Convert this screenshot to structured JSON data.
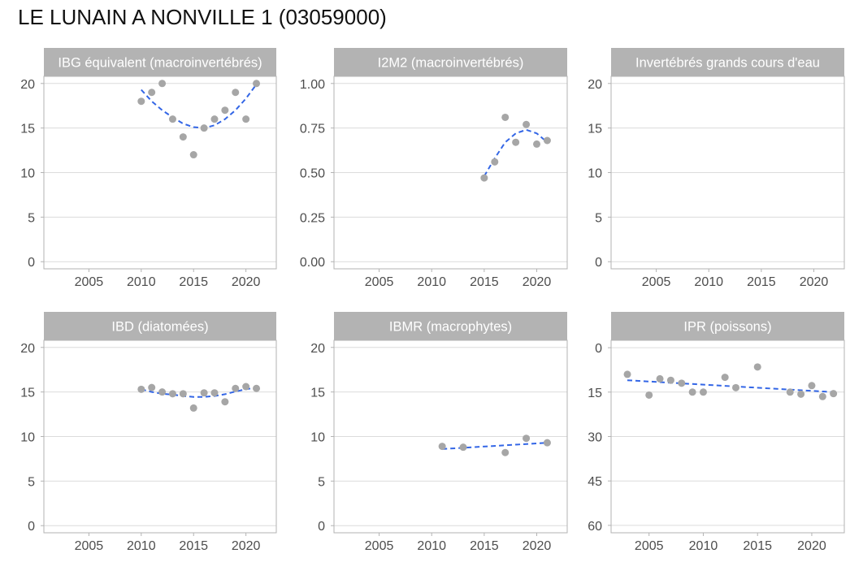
{
  "page": {
    "title": "LE LUNAIN A NONVILLE 1 (03059000)"
  },
  "style": {
    "strip_fill": "#b3b3b3",
    "strip_text": "#ffffff",
    "panel_border": "#b3b3b3",
    "grid": "#dcdcdc",
    "tick_text": "#4d4d4d",
    "point": "#a6a6a6",
    "trend": "#3366e6"
  },
  "chart_data": [
    {
      "type": "scatter",
      "title": "IBG équivalent (macroinvertébrés)",
      "xlim": [
        2000.7,
        2022.9
      ],
      "ylim": [
        -0.8,
        20.8
      ],
      "x_ticks": [
        2005,
        2010,
        2015,
        2020
      ],
      "y_ticks": [
        0,
        5,
        10,
        15,
        20
      ],
      "y_tick_labels": [
        "0",
        "5",
        "10",
        "15",
        "20"
      ],
      "y_reversed": false,
      "grid": true,
      "points": [
        [
          2010,
          18
        ],
        [
          2011,
          19
        ],
        [
          2012,
          20
        ],
        [
          2013,
          16
        ],
        [
          2014,
          14
        ],
        [
          2015,
          12
        ],
        [
          2016,
          15
        ],
        [
          2017,
          16
        ],
        [
          2018,
          17
        ],
        [
          2019,
          19
        ],
        [
          2020,
          16
        ],
        [
          2021,
          20
        ]
      ],
      "trend": [
        [
          2010,
          19.3
        ],
        [
          2011,
          18.0
        ],
        [
          2012,
          17.0
        ],
        [
          2013,
          16.2
        ],
        [
          2014,
          15.5
        ],
        [
          2015,
          15.1
        ],
        [
          2016,
          15.0
        ],
        [
          2017,
          15.3
        ],
        [
          2018,
          16.0
        ],
        [
          2019,
          17.0
        ],
        [
          2020,
          18.3
        ],
        [
          2021,
          19.9
        ]
      ]
    },
    {
      "type": "scatter",
      "title": "I2M2 (macroinvertébrés)",
      "xlim": [
        2000.7,
        2022.9
      ],
      "ylim": [
        -0.04,
        1.04
      ],
      "x_ticks": [
        2005,
        2010,
        2015,
        2020
      ],
      "y_ticks": [
        0,
        0.25,
        0.5,
        0.75,
        1.0
      ],
      "y_tick_labels": [
        "0.00",
        "0.25",
        "0.50",
        "0.75",
        "1.00"
      ],
      "y_reversed": false,
      "grid": true,
      "points": [
        [
          2015,
          0.47
        ],
        [
          2016,
          0.56
        ],
        [
          2017,
          0.81
        ],
        [
          2018,
          0.67
        ],
        [
          2019,
          0.77
        ],
        [
          2020,
          0.66
        ],
        [
          2021,
          0.68
        ]
      ],
      "trend": [
        [
          2015,
          0.48
        ],
        [
          2016,
          0.58
        ],
        [
          2017,
          0.67
        ],
        [
          2018,
          0.72
        ],
        [
          2019,
          0.74
        ],
        [
          2020,
          0.72
        ],
        [
          2021,
          0.67
        ]
      ]
    },
    {
      "type": "scatter",
      "title": "Invertébrés grands cours d'eau",
      "xlim": [
        2000.7,
        2022.9
      ],
      "ylim": [
        -0.8,
        20.8
      ],
      "x_ticks": [
        2005,
        2010,
        2015,
        2020
      ],
      "y_ticks": [
        0,
        5,
        10,
        15,
        20
      ],
      "y_tick_labels": [
        "0",
        "5",
        "10",
        "15",
        "20"
      ],
      "y_reversed": false,
      "grid": true,
      "points": [],
      "trend": []
    },
    {
      "type": "scatter",
      "title": "IBD (diatomées)",
      "xlim": [
        2000.7,
        2022.9
      ],
      "ylim": [
        -0.8,
        20.8
      ],
      "x_ticks": [
        2005,
        2010,
        2015,
        2020
      ],
      "y_ticks": [
        0,
        5,
        10,
        15,
        20
      ],
      "y_tick_labels": [
        "0",
        "5",
        "10",
        "15",
        "20"
      ],
      "y_reversed": false,
      "grid": true,
      "points": [
        [
          2010,
          15.3
        ],
        [
          2011,
          15.5
        ],
        [
          2012,
          15.0
        ],
        [
          2013,
          14.8
        ],
        [
          2014,
          14.8
        ],
        [
          2015,
          13.2
        ],
        [
          2016,
          14.9
        ],
        [
          2017,
          14.9
        ],
        [
          2018,
          13.9
        ],
        [
          2019,
          15.4
        ],
        [
          2020,
          15.6
        ],
        [
          2021,
          15.4
        ]
      ],
      "trend": [
        [
          2010,
          15.3
        ],
        [
          2011,
          15.0
        ],
        [
          2012,
          14.8
        ],
        [
          2013,
          14.7
        ],
        [
          2014,
          14.55
        ],
        [
          2015,
          14.45
        ],
        [
          2016,
          14.45
        ],
        [
          2017,
          14.55
        ],
        [
          2018,
          14.75
        ],
        [
          2019,
          15.05
        ],
        [
          2020,
          15.3
        ],
        [
          2021,
          15.5
        ]
      ]
    },
    {
      "type": "scatter",
      "title": "IBMR (macrophytes)",
      "xlim": [
        2000.7,
        2022.9
      ],
      "ylim": [
        -0.8,
        20.8
      ],
      "x_ticks": [
        2005,
        2010,
        2015,
        2020
      ],
      "y_ticks": [
        0,
        5,
        10,
        15,
        20
      ],
      "y_tick_labels": [
        "0",
        "5",
        "10",
        "15",
        "20"
      ],
      "y_reversed": false,
      "grid": true,
      "points": [
        [
          2011,
          8.9
        ],
        [
          2013,
          8.8
        ],
        [
          2017,
          8.2
        ],
        [
          2019,
          9.8
        ],
        [
          2021,
          9.3
        ]
      ],
      "trend": [
        [
          2011,
          8.6
        ],
        [
          2021,
          9.3
        ]
      ]
    },
    {
      "type": "scatter",
      "title": "IPR (poissons)",
      "xlim": [
        2001.5,
        2023
      ],
      "ylim": [
        -2.5,
        62.5
      ],
      "x_ticks": [
        2005,
        2010,
        2015,
        2020
      ],
      "y_ticks": [
        0,
        15,
        30,
        45,
        60
      ],
      "y_tick_labels": [
        "0",
        "15",
        "30",
        "45",
        "60"
      ],
      "y_reversed": true,
      "grid": true,
      "points": [
        [
          2003,
          9
        ],
        [
          2005,
          16
        ],
        [
          2006,
          10.5
        ],
        [
          2007,
          11
        ],
        [
          2008,
          12
        ],
        [
          2009,
          15
        ],
        [
          2010,
          15
        ],
        [
          2012,
          10
        ],
        [
          2013,
          13.5
        ],
        [
          2015,
          6.5
        ],
        [
          2018,
          15
        ],
        [
          2019,
          15.7
        ],
        [
          2020,
          12.8
        ],
        [
          2021,
          16.5
        ],
        [
          2022,
          15.5
        ]
      ],
      "trend": [
        [
          2003,
          11
        ],
        [
          2022,
          15
        ]
      ]
    }
  ]
}
